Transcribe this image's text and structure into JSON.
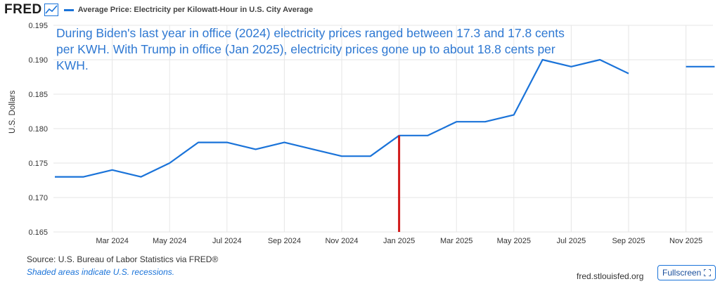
{
  "header": {
    "logo": "FRED",
    "logo_icon": "line-chart-icon",
    "legend_label": "Average Price: Electricity per Kilowatt-Hour in U.S. City Average"
  },
  "colors": {
    "series": "#1a73d9",
    "annotation_text": "#2e78d2",
    "marker_line": "#d11a1a",
    "grid": "#e6e6e6"
  },
  "chart_data": {
    "type": "line",
    "ylabel": "U.S. Dollars",
    "ylim": [
      0.165,
      0.195
    ],
    "yticks": [
      "0.165",
      "0.170",
      "0.175",
      "0.180",
      "0.185",
      "0.190",
      "0.195"
    ],
    "xticks": [
      "Mar 2024",
      "May 2024",
      "Jul 2024",
      "Sep 2024",
      "Nov 2024",
      "Jan 2025",
      "Mar 2025",
      "May 2025",
      "Jul 2025",
      "Sep 2025",
      "Nov 2025"
    ],
    "series": [
      {
        "name": "Average Price: Electricity per Kilowatt-Hour in U.S. City Average",
        "x": [
          "Jan 2024",
          "Feb 2024",
          "Mar 2024",
          "Apr 2024",
          "May 2024",
          "Jun 2024",
          "Jul 2024",
          "Aug 2024",
          "Sep 2024",
          "Oct 2024",
          "Nov 2024",
          "Dec 2024",
          "Jan 2025",
          "Feb 2025",
          "Mar 2025",
          "Apr 2025",
          "May 2025",
          "Jun 2025",
          "Jul 2025",
          "Aug 2025",
          "Sep 2025",
          "Oct 2025",
          "Nov 2025",
          "Dec 2025"
        ],
        "values": [
          0.173,
          0.173,
          0.174,
          0.173,
          0.175,
          0.178,
          0.178,
          0.177,
          0.178,
          0.177,
          0.176,
          0.176,
          0.179,
          0.179,
          0.181,
          0.181,
          0.182,
          0.19,
          0.189,
          0.19,
          0.188,
          null,
          0.189,
          0.189
        ]
      }
    ],
    "marker": {
      "x": "Jan 2025",
      "value": 0.179
    },
    "annotation_lines": [
      "During Biden's last year in office (2024) electricity prices ranged between 17.3 and 17.8 cents",
      "per KWH.  With Trump in office (Jan 2025), electricity prices gone up to about 18.8 cents per",
      "KWH."
    ]
  },
  "footer": {
    "source": "Source: U.S. Bureau of Labor Statistics via FRED®",
    "shaded": "Shaded areas indicate U.S. recessions.",
    "site": "fred.stlouisfed.org",
    "fullscreen_label": "Fullscreen",
    "fullscreen_icon": "expand-icon"
  }
}
